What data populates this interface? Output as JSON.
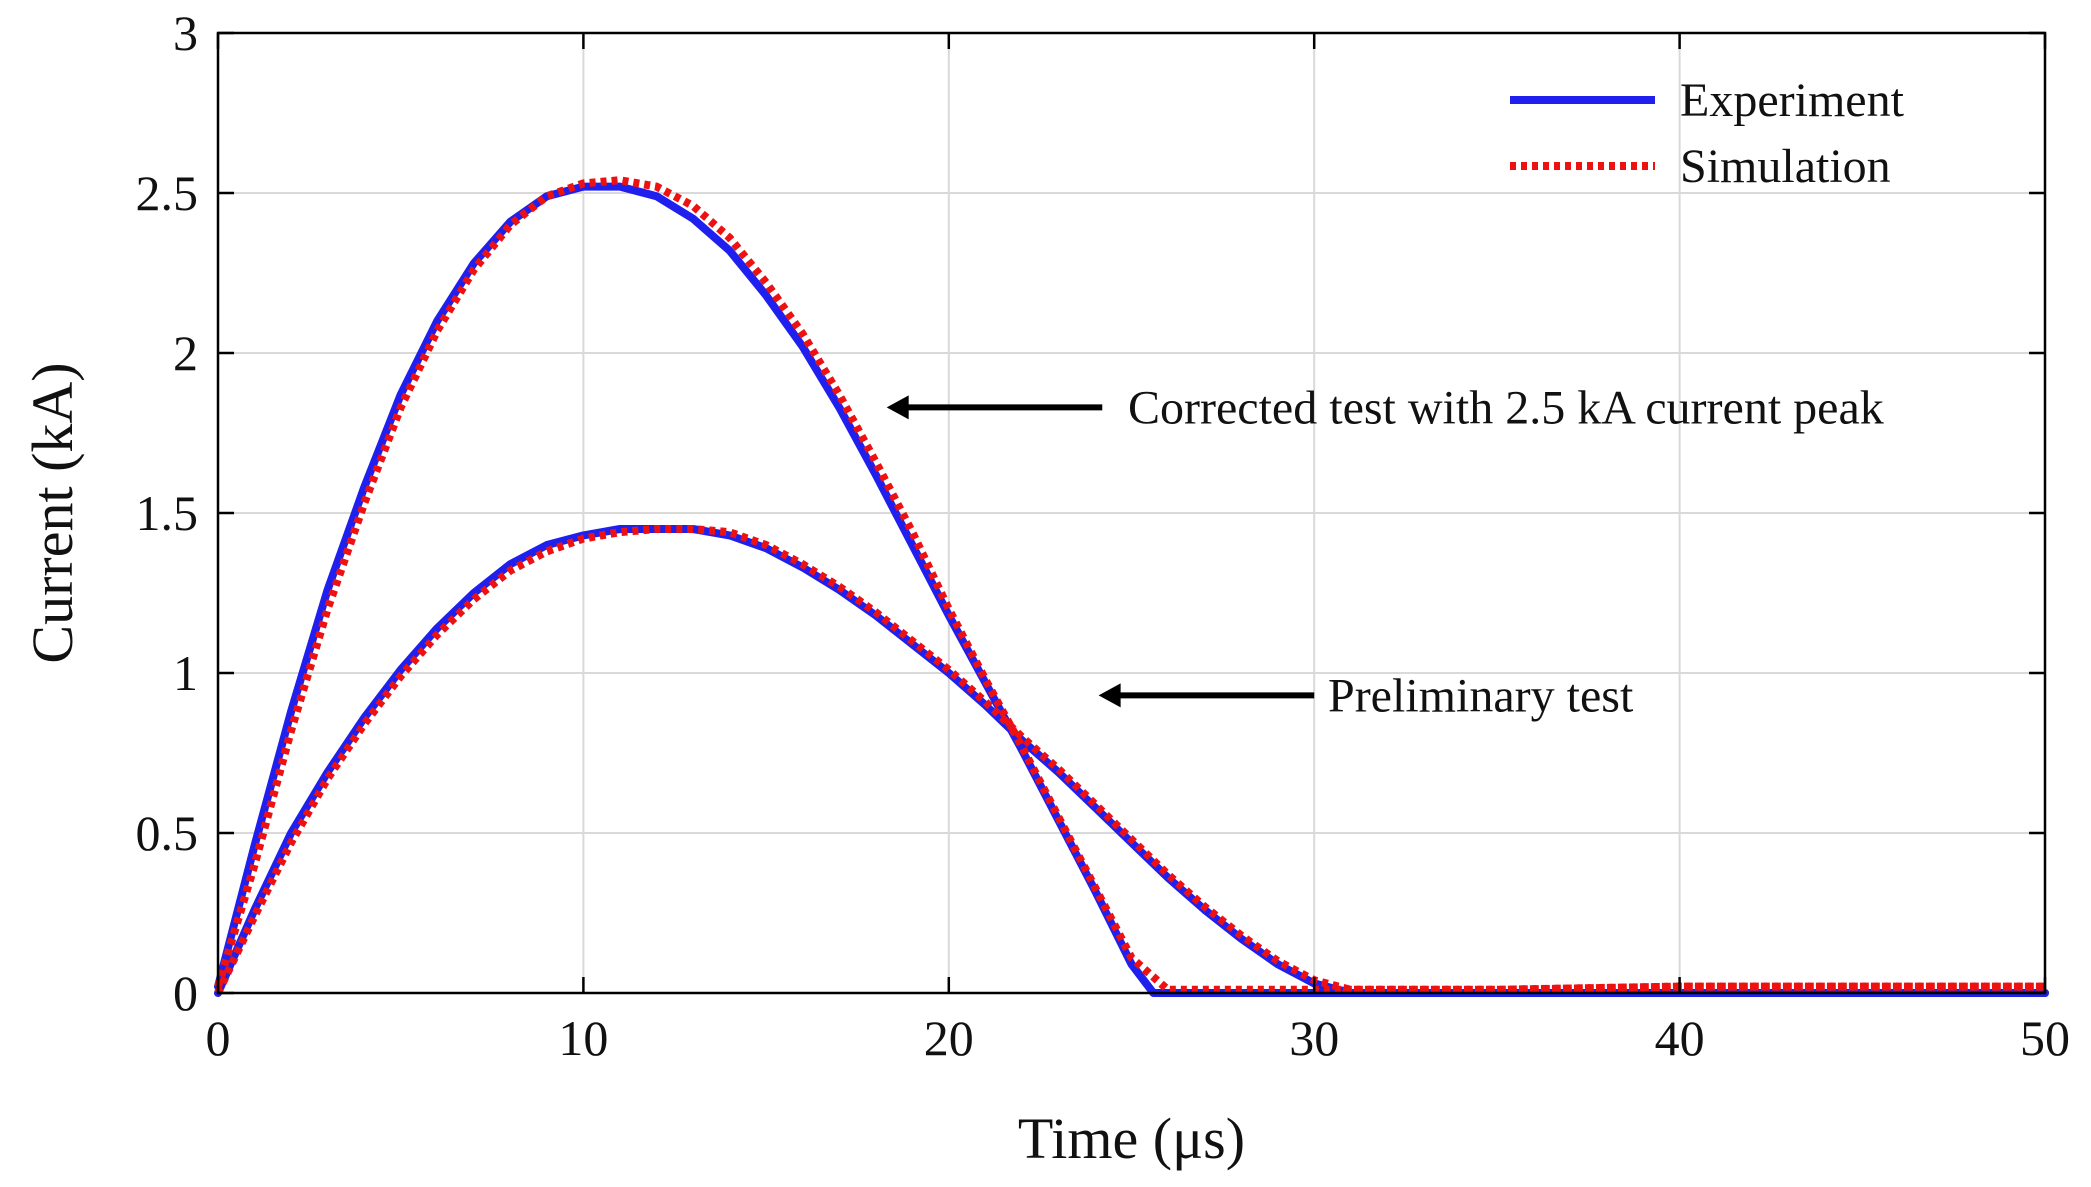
{
  "chart_data": {
    "type": "line",
    "title": "",
    "xlabel": "Time (μs)",
    "ylabel": "Current (kA)",
    "xlim": [
      0,
      50
    ],
    "ylim": [
      0,
      3
    ],
    "xticks": [
      0,
      10,
      20,
      30,
      40,
      50
    ],
    "yticks": [
      0,
      0.5,
      1,
      1.5,
      2,
      2.5,
      3
    ],
    "xtick_labels": [
      "0",
      "10",
      "20",
      "30",
      "40",
      "50"
    ],
    "ytick_labels": [
      "0",
      "0.5",
      "1",
      "1.5",
      "2",
      "2.5",
      "3"
    ],
    "grid": true,
    "legend": {
      "position": "top-right",
      "entries": [
        {
          "name": "Experiment",
          "color": "#2020ee",
          "style": "solid"
        },
        {
          "name": "Simulation",
          "color": "#ee1111",
          "style": "dotted"
        }
      ]
    },
    "annotations": [
      {
        "text": "Corrected test with 2.5 kA current peak",
        "arrow_from": [
          24.2,
          1.83
        ],
        "arrow_to": [
          18.3,
          1.83
        ]
      },
      {
        "text": "Preliminary test",
        "arrow_from": [
          30,
          0.93
        ],
        "arrow_to": [
          24.1,
          0.93
        ]
      }
    ],
    "series": [
      {
        "name": "Experiment",
        "test": "Corrected test with 2.5 kA current peak",
        "color": "#2020ee",
        "x": [
          0,
          1,
          2,
          3,
          4,
          5,
          6,
          7,
          8,
          9,
          10,
          11,
          12,
          13,
          14,
          15,
          16,
          17,
          18,
          19,
          20,
          21,
          22,
          23,
          24,
          25,
          25.6,
          26,
          30,
          35,
          40,
          45,
          50
        ],
        "values": [
          0.02,
          0.46,
          0.88,
          1.26,
          1.58,
          1.87,
          2.1,
          2.28,
          2.41,
          2.49,
          2.52,
          2.52,
          2.49,
          2.42,
          2.32,
          2.18,
          2.02,
          1.83,
          1.62,
          1.4,
          1.18,
          0.97,
          0.76,
          0.54,
          0.32,
          0.09,
          0.0,
          0.0,
          0.0,
          0.0,
          0.0,
          0.0,
          0.0
        ]
      },
      {
        "name": "Simulation",
        "test": "Corrected test with 2.5 kA current peak",
        "color": "#ee1111",
        "x": [
          0,
          1,
          2,
          3,
          4,
          5,
          6,
          7,
          8,
          9,
          10,
          11,
          12,
          13,
          14,
          15,
          16,
          17,
          18,
          19,
          20,
          21,
          22,
          23,
          24,
          25,
          26,
          27,
          30,
          35,
          40,
          45,
          50
        ],
        "values": [
          0.02,
          0.4,
          0.82,
          1.2,
          1.53,
          1.83,
          2.07,
          2.26,
          2.4,
          2.49,
          2.53,
          2.54,
          2.52,
          2.46,
          2.36,
          2.22,
          2.06,
          1.87,
          1.66,
          1.44,
          1.2,
          0.98,
          0.77,
          0.55,
          0.33,
          0.11,
          0.01,
          0.01,
          0.01,
          0.01,
          0.02,
          0.02,
          0.02
        ]
      },
      {
        "name": "Experiment",
        "test": "Preliminary test",
        "color": "#2020ee",
        "x": [
          0,
          1,
          2,
          3,
          4,
          5,
          6,
          7,
          8,
          9,
          10,
          11,
          12,
          13,
          14,
          15,
          16,
          17,
          18,
          19,
          20,
          21,
          22,
          23,
          24,
          25,
          26,
          27,
          28,
          29,
          30,
          31,
          35,
          40,
          45,
          50
        ],
        "values": [
          0.0,
          0.26,
          0.5,
          0.69,
          0.86,
          1.01,
          1.14,
          1.25,
          1.34,
          1.4,
          1.43,
          1.45,
          1.45,
          1.45,
          1.43,
          1.39,
          1.33,
          1.26,
          1.18,
          1.09,
          1.0,
          0.9,
          0.79,
          0.69,
          0.58,
          0.47,
          0.36,
          0.26,
          0.17,
          0.09,
          0.03,
          0.0,
          0.0,
          0.0,
          0.0,
          0.0
        ]
      },
      {
        "name": "Simulation",
        "test": "Preliminary test",
        "color": "#ee1111",
        "x": [
          0,
          1,
          2,
          3,
          4,
          5,
          6,
          7,
          8,
          9,
          10,
          11,
          12,
          13,
          14,
          15,
          16,
          17,
          18,
          19,
          20,
          21,
          22,
          23,
          24,
          25,
          26,
          27,
          28,
          29,
          30,
          31,
          35,
          40,
          45,
          50
        ],
        "values": [
          0.0,
          0.24,
          0.47,
          0.67,
          0.84,
          0.99,
          1.12,
          1.23,
          1.32,
          1.38,
          1.42,
          1.44,
          1.45,
          1.45,
          1.44,
          1.4,
          1.34,
          1.27,
          1.19,
          1.1,
          1.01,
          0.91,
          0.8,
          0.7,
          0.59,
          0.48,
          0.37,
          0.27,
          0.18,
          0.1,
          0.04,
          0.01,
          0.01,
          0.02,
          0.02,
          0.02
        ]
      }
    ]
  }
}
